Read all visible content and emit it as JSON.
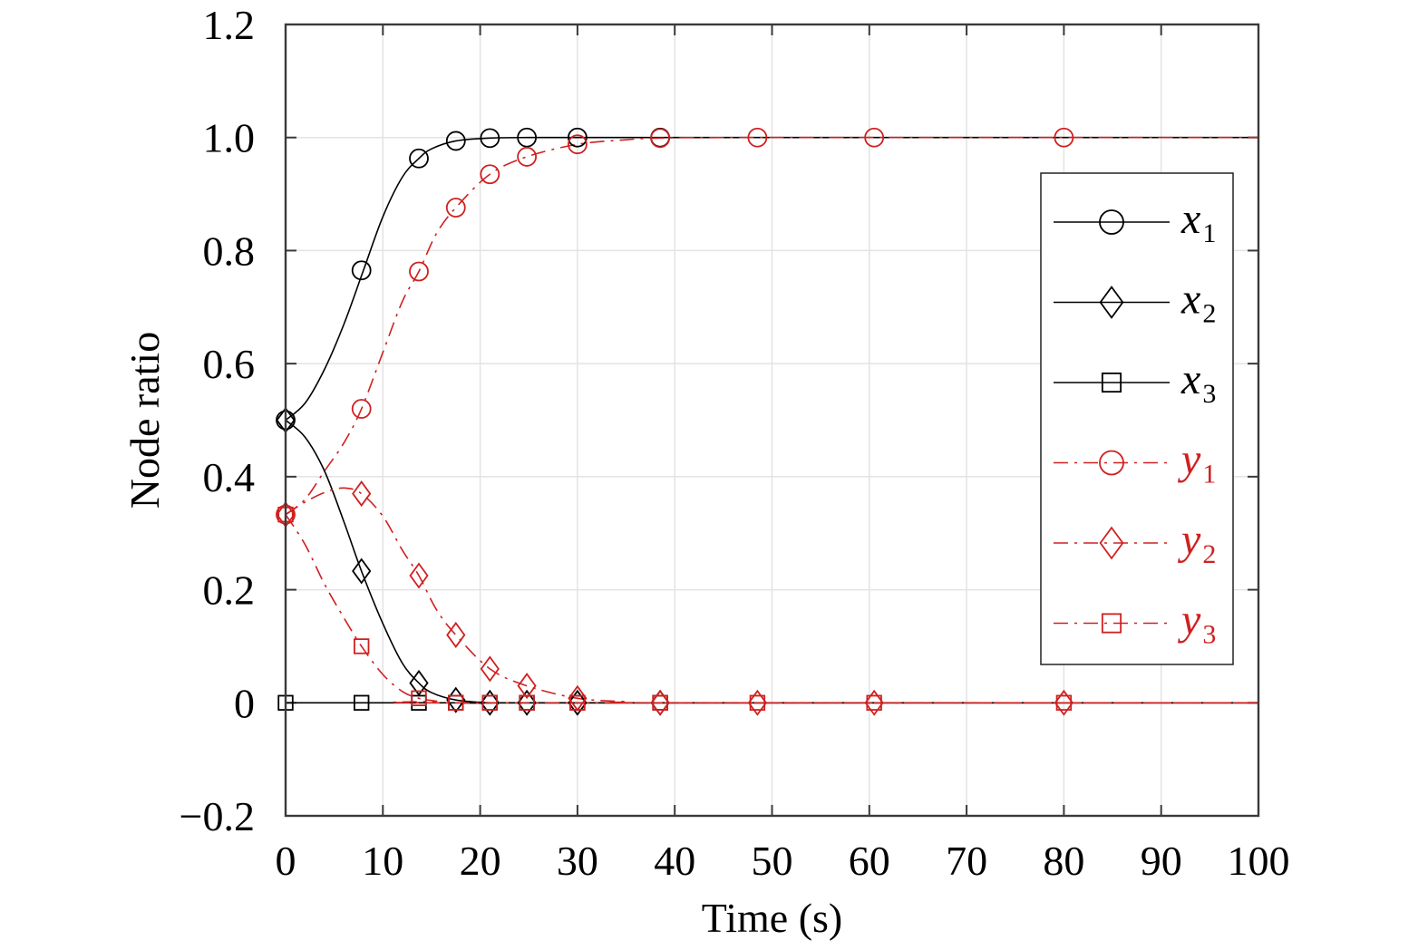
{
  "chart_data": {
    "type": "line",
    "xlabel": "Time (s)",
    "ylabel": "Node ratio",
    "xlim": [
      0,
      100
    ],
    "ylim": [
      -0.2,
      1.2
    ],
    "x_ticks": [
      "0",
      "10",
      "20",
      "30",
      "40",
      "50",
      "60",
      "70",
      "80",
      "90",
      "100"
    ],
    "y_ticks": [
      "−0.2",
      "0",
      "0.2",
      "0.4",
      "0.6",
      "0.8",
      "1.0",
      "1.2"
    ],
    "grid": true,
    "legend_position": "right",
    "series": [
      {
        "name": "x1",
        "var": "x",
        "sub": "1",
        "color": "#000000",
        "line": "solid",
        "marker": "circle",
        "curve": [
          [
            0,
            0.5
          ],
          [
            2,
            0.53
          ],
          [
            4,
            0.59
          ],
          [
            6,
            0.67
          ],
          [
            8,
            0.765
          ],
          [
            10,
            0.86
          ],
          [
            12,
            0.93
          ],
          [
            13.7,
            0.963
          ],
          [
            15,
            0.98
          ],
          [
            17.5,
            0.994
          ],
          [
            21,
            0.999
          ],
          [
            25,
            1.0
          ],
          [
            30,
            1.0
          ],
          [
            40,
            1.0
          ],
          [
            100,
            1.0
          ]
        ],
        "markers": [
          [
            0,
            0.5
          ],
          [
            7.8,
            0.765
          ],
          [
            13.7,
            0.963
          ],
          [
            17.5,
            0.994
          ],
          [
            21,
            0.999
          ],
          [
            24.8,
            1.0
          ],
          [
            30,
            1.0
          ],
          [
            38.5,
            1.0
          ]
        ]
      },
      {
        "name": "x2",
        "var": "x",
        "sub": "2",
        "color": "#000000",
        "line": "solid",
        "marker": "diamond",
        "curve": [
          [
            0,
            0.5
          ],
          [
            2,
            0.47
          ],
          [
            4,
            0.41
          ],
          [
            6,
            0.32
          ],
          [
            7.8,
            0.233
          ],
          [
            10,
            0.14
          ],
          [
            12,
            0.07
          ],
          [
            13.7,
            0.035
          ],
          [
            15,
            0.018
          ],
          [
            17.5,
            0.005
          ],
          [
            21,
            0.0
          ],
          [
            25,
            0.0
          ],
          [
            100,
            0.0
          ]
        ],
        "markers": [
          [
            0,
            0.5
          ],
          [
            7.8,
            0.233
          ],
          [
            13.7,
            0.035
          ],
          [
            17.5,
            0.005
          ],
          [
            21,
            0.0
          ],
          [
            24.8,
            0.0
          ],
          [
            30,
            0.0
          ],
          [
            38.5,
            0.0
          ]
        ]
      },
      {
        "name": "x3",
        "var": "x",
        "sub": "3",
        "color": "#000000",
        "line": "solid",
        "marker": "square",
        "curve": [
          [
            0,
            0.0
          ],
          [
            100,
            0.0
          ]
        ],
        "markers": [
          [
            0,
            0.0
          ],
          [
            7.8,
            0.0
          ],
          [
            13.7,
            0.0
          ],
          [
            17.5,
            0.0
          ],
          [
            21,
            0.0
          ],
          [
            24.8,
            0.0
          ],
          [
            30,
            0.0
          ],
          [
            38.5,
            0.0
          ]
        ]
      },
      {
        "name": "y1",
        "var": "y",
        "sub": "1",
        "color": "#d02020",
        "line": "dashdot",
        "marker": "circle",
        "curve": [
          [
            0,
            0.333
          ],
          [
            2,
            0.36
          ],
          [
            4,
            0.41
          ],
          [
            6,
            0.46
          ],
          [
            7.8,
            0.52
          ],
          [
            10,
            0.62
          ],
          [
            12,
            0.71
          ],
          [
            13.7,
            0.763
          ],
          [
            15.5,
            0.83
          ],
          [
            17.5,
            0.876
          ],
          [
            21,
            0.935
          ],
          [
            24.8,
            0.966
          ],
          [
            30,
            0.988
          ],
          [
            35,
            0.996
          ],
          [
            38.5,
            0.999
          ],
          [
            48,
            1.0
          ],
          [
            100,
            1.0
          ]
        ],
        "markers": [
          [
            0,
            0.333
          ],
          [
            7.8,
            0.52
          ],
          [
            13.7,
            0.763
          ],
          [
            17.5,
            0.876
          ],
          [
            21,
            0.935
          ],
          [
            24.8,
            0.966
          ],
          [
            30,
            0.988
          ],
          [
            38.5,
            0.999
          ],
          [
            48.5,
            1.0
          ],
          [
            60.5,
            1.0
          ],
          [
            80,
            1.0
          ]
        ]
      },
      {
        "name": "y2",
        "var": "y",
        "sub": "2",
        "color": "#d02020",
        "line": "dashdot",
        "marker": "diamond",
        "curve": [
          [
            0,
            0.333
          ],
          [
            2,
            0.355
          ],
          [
            4,
            0.372
          ],
          [
            6,
            0.38
          ],
          [
            7.8,
            0.37
          ],
          [
            10,
            0.33
          ],
          [
            12,
            0.27
          ],
          [
            13.7,
            0.225
          ],
          [
            15.5,
            0.165
          ],
          [
            17.5,
            0.12
          ],
          [
            21,
            0.06
          ],
          [
            24.8,
            0.03
          ],
          [
            30,
            0.008
          ],
          [
            35,
            0.002
          ],
          [
            38.5,
            0.0
          ],
          [
            100,
            0.0
          ]
        ],
        "markers": [
          [
            0,
            0.333
          ],
          [
            7.8,
            0.37
          ],
          [
            13.7,
            0.225
          ],
          [
            17.5,
            0.12
          ],
          [
            21,
            0.06
          ],
          [
            24.8,
            0.03
          ],
          [
            30,
            0.008
          ],
          [
            38.5,
            0.0
          ],
          [
            48.5,
            0.0
          ],
          [
            60.5,
            0.0
          ],
          [
            80,
            0.0
          ]
        ]
      },
      {
        "name": "y3",
        "var": "y",
        "sub": "3",
        "color": "#d02020",
        "line": "dashdot",
        "marker": "square",
        "curve": [
          [
            0,
            0.333
          ],
          [
            2,
            0.28
          ],
          [
            4,
            0.21
          ],
          [
            6,
            0.15
          ],
          [
            7.8,
            0.1
          ],
          [
            10,
            0.05
          ],
          [
            12,
            0.02
          ],
          [
            13.7,
            0.008
          ],
          [
            15.5,
            0.003
          ],
          [
            17.5,
            0.0
          ],
          [
            100,
            0.0
          ]
        ],
        "markers": [
          [
            0,
            0.333
          ],
          [
            7.8,
            0.1
          ],
          [
            13.7,
            0.008
          ],
          [
            17.5,
            0.0
          ],
          [
            21,
            0.0
          ],
          [
            24.8,
            0.0
          ],
          [
            30,
            0.0
          ],
          [
            38.5,
            0.0
          ],
          [
            48.5,
            0.0
          ],
          [
            60.5,
            0.0
          ],
          [
            80,
            0.0
          ]
        ]
      }
    ]
  }
}
